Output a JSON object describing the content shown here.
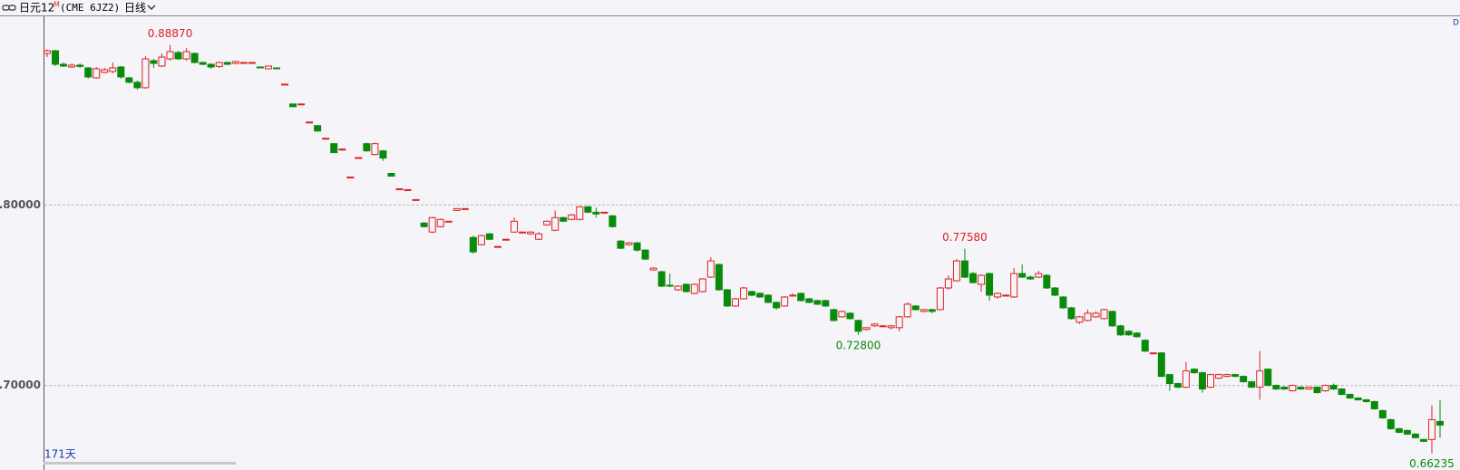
{
  "header": {
    "symbol": "日元12",
    "superscript": "M",
    "code": "(CME 6JZ2)",
    "period": "日线"
  },
  "chart_data": {
    "type": "candlestick",
    "days_label": "171天",
    "corner_label": "D",
    "up_color": "#e02020",
    "down_color": "#0a8a0a",
    "grid": true,
    "ylim": [
      0.6546,
      0.9046
    ],
    "yticks": [
      {
        "value": 0.8,
        "label": "0.80000"
      },
      {
        "value": 0.7,
        "label": "0.70000"
      }
    ],
    "annotations": [
      {
        "label": "0.88870",
        "value": 0.8887,
        "kind": "high",
        "color": "#e02020"
      },
      {
        "label": "0.77580",
        "value": 0.7758,
        "kind": "high",
        "color": "#e02020"
      },
      {
        "label": "0.72800",
        "value": 0.728,
        "kind": "low",
        "color": "#0a8a0a"
      },
      {
        "label": "0.66235",
        "value": 0.66235,
        "kind": "low",
        "color": "#0a8a0a"
      }
    ],
    "ohlc": [
      [
        0.884,
        0.8862,
        0.882,
        0.8855
      ],
      [
        0.8855,
        0.886,
        0.877,
        0.878
      ],
      [
        0.878,
        0.879,
        0.8765,
        0.877
      ],
      [
        0.8765,
        0.8785,
        0.876,
        0.8775
      ],
      [
        0.8775,
        0.8785,
        0.876,
        0.8768
      ],
      [
        0.876,
        0.8765,
        0.87,
        0.871
      ],
      [
        0.8705,
        0.8765,
        0.87,
        0.8755
      ],
      [
        0.8735,
        0.876,
        0.873,
        0.875
      ],
      [
        0.874,
        0.879,
        0.873,
        0.876
      ],
      [
        0.8765,
        0.877,
        0.87,
        0.871
      ],
      [
        0.8705,
        0.871,
        0.8675,
        0.868
      ],
      [
        0.868,
        0.869,
        0.864,
        0.865
      ],
      [
        0.865,
        0.8825,
        0.8645,
        0.881
      ],
      [
        0.88,
        0.881,
        0.876,
        0.8785
      ],
      [
        0.877,
        0.884,
        0.8765,
        0.882
      ],
      [
        0.881,
        0.8887,
        0.88,
        0.885
      ],
      [
        0.8845,
        0.8855,
        0.8805,
        0.881
      ],
      [
        0.881,
        0.887,
        0.88,
        0.885
      ],
      [
        0.884,
        0.8845,
        0.8785,
        0.879
      ],
      [
        0.879,
        0.8795,
        0.8775,
        0.878
      ],
      [
        0.878,
        0.8785,
        0.8755,
        0.8765
      ],
      [
        0.8768,
        0.8795,
        0.876,
        0.879
      ],
      [
        0.879,
        0.8795,
        0.8775,
        0.878
      ],
      [
        0.8785,
        0.88,
        0.878,
        0.8795
      ],
      [
        0.879,
        0.8792,
        0.8788,
        0.879
      ],
      [
        0.879,
        0.8792,
        0.8788,
        0.879
      ],
      [
        0.8765,
        0.8767,
        0.876,
        0.876
      ],
      [
        0.8755,
        0.8772,
        0.8753,
        0.877
      ],
      [
        0.876,
        0.8762,
        0.8753,
        0.8755
      ],
      [
        0.867,
        0.8672,
        0.8668,
        0.867
      ],
      [
        0.856,
        0.8562,
        0.8543,
        0.8545
      ],
      [
        0.856,
        0.8562,
        0.8558,
        0.856
      ],
      [
        0.846,
        0.8462,
        0.8458,
        0.846
      ],
      [
        0.844,
        0.8442,
        0.8408,
        0.841
      ],
      [
        0.837,
        0.8372,
        0.8368,
        0.837
      ],
      [
        0.834,
        0.8342,
        0.8288,
        0.829
      ],
      [
        0.8305,
        0.8312,
        0.83,
        0.831
      ],
      [
        0.8155,
        0.8157,
        0.8153,
        0.8155
      ],
      [
        0.8263,
        0.8265,
        0.8261,
        0.8263
      ],
      [
        0.834,
        0.8345,
        0.8295,
        0.83
      ],
      [
        0.828,
        0.8345,
        0.8275,
        0.834
      ],
      [
        0.83,
        0.8305,
        0.8245,
        0.826
      ],
      [
        0.8175,
        0.8178,
        0.8158,
        0.816
      ],
      [
        0.8085,
        0.8092,
        0.8083,
        0.809
      ],
      [
        0.8085,
        0.8087,
        0.8083,
        0.8085
      ],
      [
        0.803,
        0.8032,
        0.8028,
        0.803
      ],
      [
        0.79,
        0.7905,
        0.7875,
        0.788
      ],
      [
        0.785,
        0.7935,
        0.7845,
        0.793
      ],
      [
        0.788,
        0.7925,
        0.7875,
        0.792
      ],
      [
        0.791,
        0.7912,
        0.7908,
        0.791
      ],
      [
        0.797,
        0.7982,
        0.7968,
        0.798
      ],
      [
        0.798,
        0.7982,
        0.7978,
        0.798
      ],
      [
        0.782,
        0.783,
        0.773,
        0.774
      ],
      [
        0.778,
        0.7835,
        0.7775,
        0.783
      ],
      [
        0.784,
        0.7845,
        0.7805,
        0.781
      ],
      [
        0.777,
        0.7772,
        0.7768,
        0.777
      ],
      [
        0.781,
        0.7812,
        0.7808,
        0.781
      ],
      [
        0.785,
        0.793,
        0.7845,
        0.791
      ],
      [
        0.785,
        0.7852,
        0.7848,
        0.785
      ],
      [
        0.784,
        0.7855,
        0.7835,
        0.785
      ],
      [
        0.781,
        0.785,
        0.7805,
        0.784
      ],
      [
        0.789,
        0.7915,
        0.7885,
        0.791
      ],
      [
        0.786,
        0.797,
        0.7855,
        0.793
      ],
      [
        0.793,
        0.7935,
        0.7905,
        0.791
      ],
      [
        0.792,
        0.795,
        0.7915,
        0.7945
      ],
      [
        0.792,
        0.7995,
        0.7915,
        0.799
      ],
      [
        0.799,
        0.7995,
        0.7955,
        0.796
      ],
      [
        0.796,
        0.7985,
        0.793,
        0.795
      ],
      [
        0.796,
        0.7962,
        0.7958,
        0.796
      ],
      [
        0.794,
        0.7945,
        0.7875,
        0.788
      ],
      [
        0.78,
        0.7805,
        0.7755,
        0.776
      ],
      [
        0.778,
        0.7795,
        0.7775,
        0.779
      ],
      [
        0.779,
        0.7795,
        0.774,
        0.775
      ],
      [
        0.775,
        0.7755,
        0.7695,
        0.77
      ],
      [
        0.764,
        0.7655,
        0.7635,
        0.765
      ],
      [
        0.763,
        0.7635,
        0.7545,
        0.755
      ],
      [
        0.7555,
        0.762,
        0.7545,
        0.755
      ],
      [
        0.753,
        0.7555,
        0.7525,
        0.755
      ],
      [
        0.756,
        0.7565,
        0.7515,
        0.752
      ],
      [
        0.751,
        0.7565,
        0.7505,
        0.756
      ],
      [
        0.752,
        0.7595,
        0.7515,
        0.759
      ],
      [
        0.76,
        0.771,
        0.7595,
        0.769
      ],
      [
        0.767,
        0.7675,
        0.7525,
        0.753
      ],
      [
        0.753,
        0.7535,
        0.7435,
        0.744
      ],
      [
        0.744,
        0.7485,
        0.7435,
        0.748
      ],
      [
        0.748,
        0.7545,
        0.7475,
        0.754
      ],
      [
        0.752,
        0.7525,
        0.7495,
        0.75
      ],
      [
        0.751,
        0.7515,
        0.7485,
        0.749
      ],
      [
        0.75,
        0.7505,
        0.7455,
        0.746
      ],
      [
        0.746,
        0.7465,
        0.742,
        0.743
      ],
      [
        0.744,
        0.7495,
        0.7435,
        0.749
      ],
      [
        0.75,
        0.751,
        0.7495,
        0.75
      ],
      [
        0.751,
        0.7515,
        0.7465,
        0.747
      ],
      [
        0.748,
        0.7485,
        0.7455,
        0.746
      ],
      [
        0.747,
        0.7475,
        0.7445,
        0.745
      ],
      [
        0.747,
        0.7475,
        0.7435,
        0.744
      ],
      [
        0.742,
        0.7425,
        0.7355,
        0.736
      ],
      [
        0.738,
        0.7415,
        0.7375,
        0.741
      ],
      [
        0.74,
        0.7405,
        0.7365,
        0.737
      ],
      [
        0.736,
        0.7365,
        0.728,
        0.73
      ],
      [
        0.731,
        0.7322,
        0.7305,
        0.732
      ],
      [
        0.733,
        0.7345,
        0.7325,
        0.734
      ],
      [
        0.733,
        0.7335,
        0.7325,
        0.733
      ],
      [
        0.732,
        0.7335,
        0.731,
        0.733
      ],
      [
        0.732,
        0.7385,
        0.73,
        0.738
      ],
      [
        0.738,
        0.746,
        0.7375,
        0.745
      ],
      [
        0.744,
        0.7445,
        0.7415,
        0.742
      ],
      [
        0.741,
        0.7425,
        0.7405,
        0.742
      ],
      [
        0.742,
        0.7425,
        0.74,
        0.741
      ],
      [
        0.742,
        0.7545,
        0.7415,
        0.754
      ],
      [
        0.754,
        0.761,
        0.753,
        0.759
      ],
      [
        0.758,
        0.77,
        0.7575,
        0.769
      ],
      [
        0.769,
        0.7758,
        0.7595,
        0.76
      ],
      [
        0.762,
        0.763,
        0.7565,
        0.757
      ],
      [
        0.756,
        0.7615,
        0.752,
        0.761
      ],
      [
        0.762,
        0.7625,
        0.747,
        0.75
      ],
      [
        0.749,
        0.7515,
        0.748,
        0.751
      ],
      [
        0.75,
        0.7505,
        0.7495,
        0.75
      ],
      [
        0.749,
        0.765,
        0.7485,
        0.762
      ],
      [
        0.762,
        0.767,
        0.7595,
        0.76
      ],
      [
        0.76,
        0.761,
        0.7585,
        0.759
      ],
      [
        0.76,
        0.7635,
        0.7595,
        0.762
      ],
      [
        0.761,
        0.7615,
        0.7535,
        0.754
      ],
      [
        0.754,
        0.7545,
        0.7495,
        0.75
      ],
      [
        0.749,
        0.7495,
        0.7425,
        0.743
      ],
      [
        0.743,
        0.7435,
        0.7365,
        0.737
      ],
      [
        0.735,
        0.7385,
        0.734,
        0.738
      ],
      [
        0.736,
        0.742,
        0.7355,
        0.74
      ],
      [
        0.738,
        0.741,
        0.7375,
        0.74
      ],
      [
        0.737,
        0.7425,
        0.7365,
        0.742
      ],
      [
        0.741,
        0.7415,
        0.7325,
        0.733
      ],
      [
        0.733,
        0.7335,
        0.7275,
        0.728
      ],
      [
        0.73,
        0.7305,
        0.7275,
        0.728
      ],
      [
        0.729,
        0.7295,
        0.7265,
        0.727
      ],
      [
        0.725,
        0.7255,
        0.7185,
        0.719
      ],
      [
        0.718,
        0.7182,
        0.7178,
        0.718
      ],
      [
        0.718,
        0.7185,
        0.7045,
        0.705
      ],
      [
        0.706,
        0.7065,
        0.697,
        0.701
      ],
      [
        0.701,
        0.7015,
        0.6985,
        0.699
      ],
      [
        0.699,
        0.713,
        0.6985,
        0.708
      ],
      [
        0.709,
        0.7095,
        0.7065,
        0.707
      ],
      [
        0.707,
        0.7075,
        0.696,
        0.698
      ],
      [
        0.699,
        0.7065,
        0.6985,
        0.706
      ],
      [
        0.704,
        0.7065,
        0.7035,
        0.706
      ],
      [
        0.705,
        0.7065,
        0.7045,
        0.706
      ],
      [
        0.706,
        0.7065,
        0.7045,
        0.705
      ],
      [
        0.705,
        0.7055,
        0.7015,
        0.702
      ],
      [
        0.702,
        0.7025,
        0.6985,
        0.699
      ],
      [
        0.699,
        0.719,
        0.692,
        0.708
      ],
      [
        0.709,
        0.7095,
        0.6995,
        0.7
      ],
      [
        0.7,
        0.7005,
        0.6975,
        0.698
      ],
      [
        0.699,
        0.6995,
        0.6975,
        0.698
      ],
      [
        0.697,
        0.7005,
        0.6965,
        0.7
      ],
      [
        0.699,
        0.6995,
        0.6975,
        0.698
      ],
      [
        0.698,
        0.6995,
        0.6975,
        0.699
      ],
      [
        0.699,
        0.6995,
        0.6955,
        0.696
      ],
      [
        0.697,
        0.7005,
        0.6965,
        0.7
      ],
      [
        0.7,
        0.701,
        0.6975,
        0.698
      ],
      [
        0.698,
        0.6985,
        0.6945,
        0.695
      ],
      [
        0.695,
        0.6955,
        0.6925,
        0.693
      ],
      [
        0.693,
        0.6935,
        0.6915,
        0.692
      ],
      [
        0.692,
        0.6925,
        0.6905,
        0.691
      ],
      [
        0.691,
        0.6915,
        0.6865,
        0.687
      ],
      [
        0.686,
        0.6865,
        0.6815,
        0.682
      ],
      [
        0.681,
        0.6815,
        0.6755,
        0.676
      ],
      [
        0.676,
        0.6765,
        0.6735,
        0.674
      ],
      [
        0.675,
        0.6755,
        0.6725,
        0.673
      ],
      [
        0.673,
        0.6735,
        0.6705,
        0.671
      ],
      [
        0.67,
        0.6705,
        0.6685,
        0.669
      ],
      [
        0.67,
        0.689,
        0.66235,
        0.681
      ],
      [
        0.68,
        0.692,
        0.671,
        0.678
      ]
    ]
  }
}
